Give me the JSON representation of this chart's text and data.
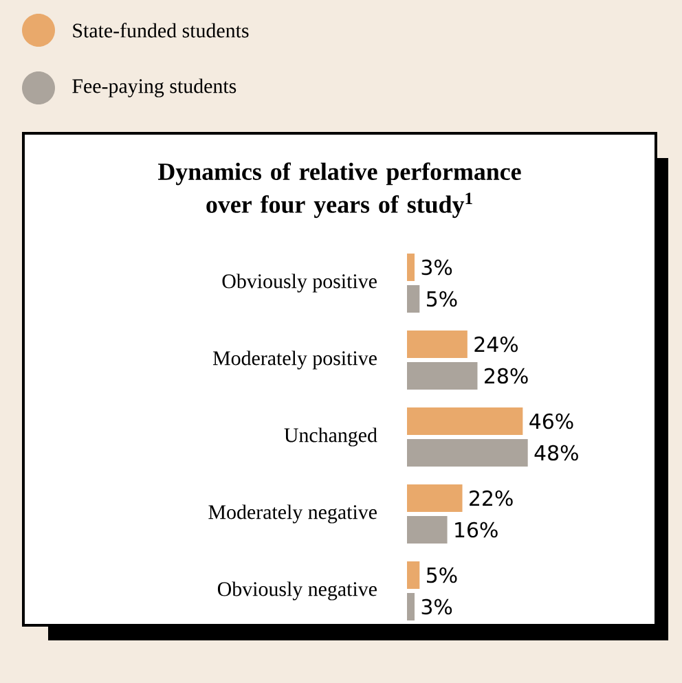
{
  "chart_data": {
    "type": "bar",
    "orientation": "horizontal",
    "title": "Dynamics of relative performance over four years of study$^{1}$",
    "categories": [
      "Obviously positive",
      "Moderately positive",
      "Unchanged",
      "Moderately negative",
      "Obviously negative"
    ],
    "series": [
      {
        "name": "State-funded students",
        "color": "#e9a96b",
        "values": [
          3,
          24,
          46,
          22,
          5
        ],
        "value_labels": [
          "3%",
          "24%",
          "46%",
          "22%",
          "5%"
        ]
      },
      {
        "name": "Fee-paying students",
        "color": "#aba49c",
        "values": [
          5,
          28,
          48,
          16,
          3
        ],
        "value_labels": [
          "5%",
          "28%",
          "48%",
          "16%",
          "3%"
        ]
      }
    ],
    "legend": "top left",
    "tick_labels": "y"
  }
}
